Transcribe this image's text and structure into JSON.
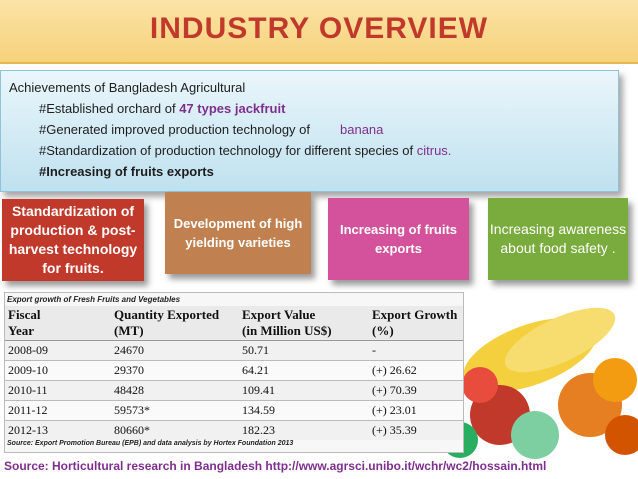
{
  "slide": {
    "title": "INDUSTRY OVERVIEW",
    "achievements": {
      "heading": "Achievements of Bangladesh Agricultural",
      "line1_prefix": "#Established orchard of ",
      "line1_highlight": "47 types jackfruit",
      "line2_prefix": "#Generated improved production technology of",
      "line2_highlight": "banana",
      "line3_prefix": "#Standardization of production technology for different species of ",
      "line3_highlight": "citrus.",
      "line4": "#Increasing of fruits exports"
    },
    "cards": [
      {
        "label": "Standardization of production & post-harvest technology for fruits."
      },
      {
        "label": "Development of high yielding varieties"
      },
      {
        "label": "Increasing of fruits exports"
      },
      {
        "label": "Increasing awareness about food safety ."
      }
    ],
    "table": {
      "caption": "Export growth of Fresh Fruits and Vegetables",
      "headers": {
        "year": [
          "Fiscal",
          "Year"
        ],
        "quantity": [
          "Quantity Exported",
          "(MT)"
        ],
        "value": [
          "Export Value",
          "(in Million US$)"
        ],
        "growth": [
          "Export Growth",
          "(%)"
        ]
      },
      "rows": [
        {
          "year": "2008-09",
          "quantity": "24670",
          "value": "50.71",
          "growth": "-"
        },
        {
          "year": "2009-10",
          "quantity": "29370",
          "value": "64.21",
          "growth": "(+) 26.62"
        },
        {
          "year": "2010-11",
          "quantity": "48428",
          "value": "109.41",
          "growth": "(+) 70.39"
        },
        {
          "year": "2011-12",
          "quantity": "59573*",
          "value": "134.59",
          "growth": "(+) 23.01"
        },
        {
          "year": "2012-13",
          "quantity": "80660*",
          "value": "182.23",
          "growth": "(+) 35.39"
        }
      ],
      "source": "Source: Export Promotion Bureau (EPB) and data analysis by Hortex Foundation 2013"
    },
    "footer": "Source: Horticultural research in Bangladesh http://www.agrsci.unibo.it/wchr/wc2/hossain.html"
  }
}
